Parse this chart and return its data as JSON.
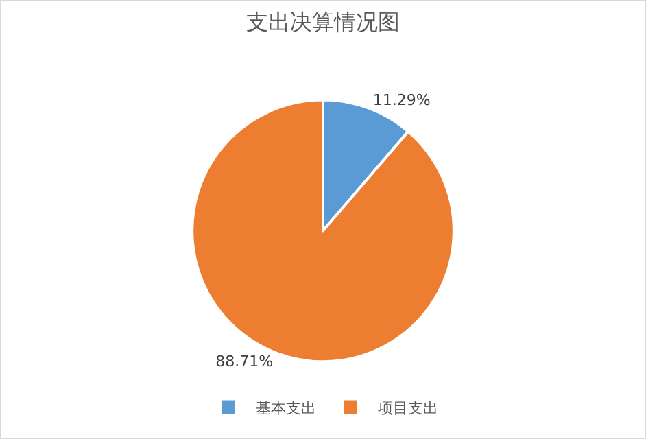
{
  "chart_data": {
    "type": "pie",
    "title": "支出决算情况图",
    "categories": [
      "基本支出",
      "项目支出"
    ],
    "values": [
      11.29,
      88.71
    ],
    "colors": [
      "#5b9bd5",
      "#ed7d31"
    ],
    "value_labels": [
      "11.29%",
      "88.71%"
    ],
    "legend": "bottom"
  }
}
